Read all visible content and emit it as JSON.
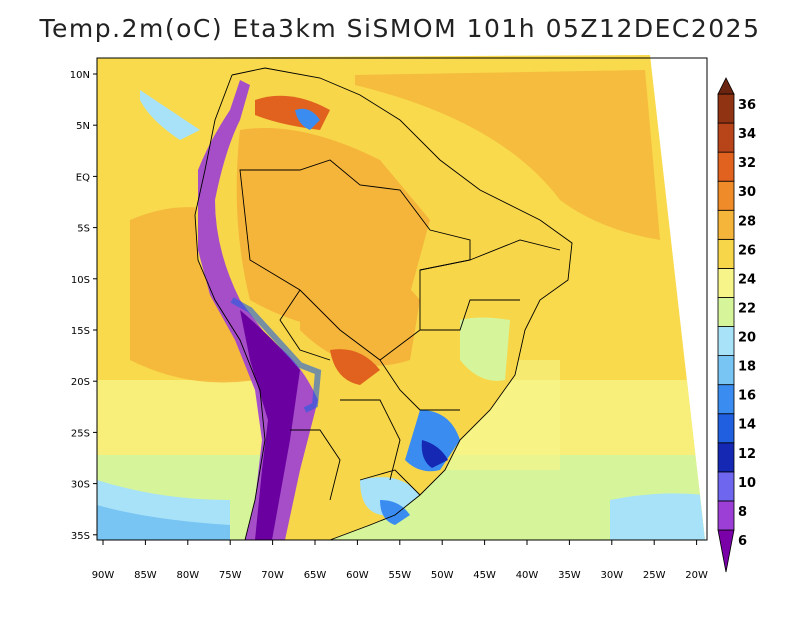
{
  "title": "Temp.2m(oC) Eta3km SiSMOM 101h 05Z12DEC2025",
  "map": {
    "lat_ticks": [
      "10N",
      "5N",
      "EQ",
      "5S",
      "10S",
      "15S",
      "20S",
      "25S",
      "30S",
      "35S"
    ],
    "lon_ticks": [
      "90W",
      "85W",
      "80W",
      "75W",
      "70W",
      "65W",
      "60W",
      "55W",
      "50W",
      "45W",
      "40W",
      "35W",
      "30W",
      "25W",
      "20W"
    ]
  },
  "colorbar": {
    "levels": [
      "6",
      "8",
      "10",
      "12",
      "14",
      "16",
      "18",
      "20",
      "22",
      "24",
      "26",
      "28",
      "30",
      "32",
      "34",
      "36"
    ],
    "colors": [
      "#7a00a8",
      "#9b3fd6",
      "#6f66f0",
      "#1428b4",
      "#1f5fe0",
      "#3a8cf0",
      "#78c4f2",
      "#a8e2f8",
      "#d6f59a",
      "#f7f58a",
      "#f7d64a",
      "#f5b43a",
      "#f08b2a",
      "#e0621e",
      "#b8441a",
      "#8f3312",
      "#6b2410"
    ]
  },
  "colors": {
    "ocean_north": "#f8da4c",
    "ocean_south": "#f7ef7a",
    "ocean_cool": "#a8e2f8",
    "land_warm": "#f5b43a",
    "land_hot": "#f08b2a",
    "andes_cold": "#6a00a0",
    "boundary": "#000000"
  }
}
